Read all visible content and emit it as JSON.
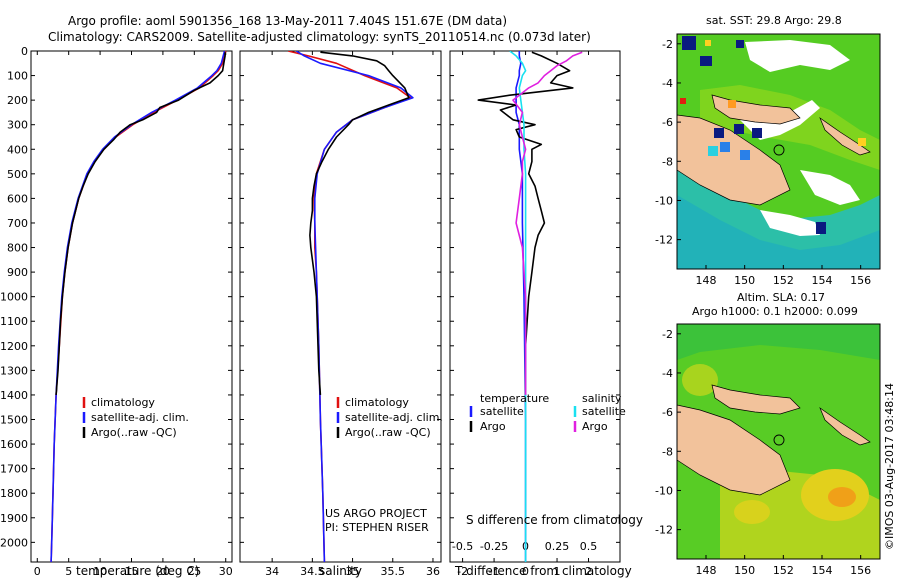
{
  "header": {
    "line1": "Argo profile: aoml 5901356_168 13-May-2011 7.404S 151.67E (DM data)",
    "line2": "Climatology: CARS2009. Satellite-adjusted climatology: synTS_20110514.nc (0.073d later)"
  },
  "colors": {
    "clim": "#e01010",
    "sat": "#1a1aff",
    "argo": "#000000",
    "cyan": "#19e0f0",
    "magenta": "#e020e0",
    "land": "#f2c29b"
  },
  "credits": {
    "project": "US ARGO PROJECT",
    "pi": "PI: STEPHEN RISER"
  },
  "imos": "©IMOS 03-Aug-2017 03:48:14",
  "maps": {
    "sst_title": "sat. SST: 29.8  Argo: 29.8",
    "sla_title1": "Altim. SLA: 0.17",
    "sla_title2": "Argo h1000: 0.1  h2000: 0.099",
    "x_ticks": [
      148,
      150,
      152,
      154,
      156
    ],
    "y_ticks": [
      -2,
      -4,
      -6,
      -8,
      -10,
      -12
    ],
    "xlim": [
      146.5,
      157
    ],
    "ylim": [
      -13.5,
      -1.5
    ],
    "float_position": {
      "lon": 151.67,
      "lat": -7.404
    }
  },
  "chart_data": [
    {
      "type": "line",
      "id": "temperature",
      "xlabel": "temperature (deg C)",
      "ylabel": "",
      "xlim": [
        -1,
        31
      ],
      "ylim": [
        2080,
        0
      ],
      "x_ticks": [
        0,
        5,
        10,
        15,
        20,
        25,
        30
      ],
      "y_ticks": [
        0,
        100,
        200,
        300,
        400,
        500,
        600,
        700,
        800,
        900,
        1000,
        1100,
        1200,
        1300,
        1400,
        1500,
        1600,
        1700,
        1800,
        1900,
        2000
      ],
      "legend": [
        "climatology",
        "satellite-adj. clim.",
        "Argo(..raw -QC)"
      ],
      "series": [
        {
          "name": "climatology",
          "color": "clim",
          "depth": [
            0,
            20,
            50,
            80,
            100,
            150,
            200,
            250,
            300,
            350,
            400,
            450,
            500,
            600,
            700,
            800,
            900,
            1000,
            1200,
            1400,
            1600,
            1800,
            2000,
            2080
          ],
          "values": [
            30,
            29.8,
            29.5,
            28.8,
            28,
            25.8,
            22.3,
            18.5,
            15.2,
            12.5,
            10.6,
            9.1,
            8,
            6.6,
            5.6,
            4.9,
            4.4,
            4.0,
            3.5,
            3.0,
            2.7,
            2.5,
            2.3,
            2.2
          ]
        },
        {
          "name": "satellite-adj. clim.",
          "color": "sat",
          "depth": [
            0,
            20,
            50,
            80,
            100,
            150,
            200,
            250,
            300,
            350,
            400,
            450,
            500,
            600,
            700,
            800,
            900,
            1000,
            1200,
            1400,
            1600,
            1800,
            2000,
            2080
          ],
          "values": [
            29.8,
            29.6,
            29.3,
            28.6,
            27.8,
            25.5,
            22.0,
            18.2,
            15.0,
            12.3,
            10.4,
            9.0,
            7.9,
            6.5,
            5.5,
            4.8,
            4.3,
            3.9,
            3.4,
            3.0,
            2.7,
            2.5,
            2.3,
            2.2
          ]
        },
        {
          "name": "Argo(..raw -QC)",
          "color": "argo",
          "depth": [
            5,
            20,
            50,
            80,
            100,
            130,
            160,
            200,
            230,
            250,
            280,
            300,
            330,
            360,
            400,
            450,
            500,
            550,
            600,
            700,
            800,
            900,
            1000,
            1100,
            1200,
            1300,
            1400
          ],
          "values": [
            29.9,
            29.9,
            29.7,
            29.5,
            28.8,
            27.5,
            25.0,
            22.5,
            19.5,
            19.0,
            16.8,
            14.8,
            13.2,
            12.2,
            10.6,
            9.2,
            8.1,
            7.3,
            6.6,
            5.6,
            4.9,
            4.4,
            4.0,
            3.7,
            3.5,
            3.3,
            3.0
          ]
        }
      ]
    },
    {
      "type": "line",
      "id": "salinity",
      "xlabel": "salinity",
      "ylabel": "",
      "xlim": [
        33.6,
        36.1
      ],
      "ylim": [
        2080,
        0
      ],
      "x_ticks": [
        34,
        34.5,
        35,
        35.5,
        36
      ],
      "legend": [
        "climatology",
        "satellite-adj. clim.",
        "Argo(..raw -QC)"
      ],
      "series": [
        {
          "name": "climatology",
          "color": "clim",
          "depth": [
            0,
            20,
            50,
            100,
            150,
            190,
            230,
            280,
            330,
            400,
            500,
            600,
            700,
            800,
            900,
            1000,
            1200,
            1500,
            1800,
            2080
          ],
          "values": [
            34.2,
            34.45,
            34.8,
            35.15,
            35.55,
            35.72,
            35.4,
            35.0,
            34.8,
            34.65,
            34.55,
            34.52,
            34.53,
            34.53,
            34.55,
            34.56,
            34.58,
            34.6,
            34.63,
            34.65
          ]
        },
        {
          "name": "satellite-adj. clim.",
          "color": "sat",
          "depth": [
            0,
            20,
            50,
            100,
            150,
            190,
            230,
            280,
            330,
            400,
            500,
            600,
            700,
            800,
            900,
            1000,
            1200,
            1500,
            1800,
            2080
          ],
          "values": [
            34.3,
            34.4,
            34.6,
            35.2,
            35.6,
            35.75,
            35.4,
            35.0,
            34.8,
            34.65,
            34.56,
            34.53,
            34.53,
            34.54,
            34.55,
            34.56,
            34.58,
            34.6,
            34.63,
            34.65
          ]
        },
        {
          "name": "Argo(..raw -QC)",
          "color": "argo",
          "depth": [
            5,
            20,
            40,
            60,
            80,
            100,
            150,
            190,
            220,
            250,
            280,
            300,
            350,
            400,
            450,
            500,
            550,
            600,
            650,
            700,
            750,
            800,
            850,
            900,
            1000,
            1100,
            1200,
            1300,
            1400
          ],
          "values": [
            34.6,
            35.0,
            35.3,
            35.4,
            35.45,
            35.5,
            35.65,
            35.7,
            35.45,
            35.2,
            35.0,
            34.95,
            34.8,
            34.7,
            34.62,
            34.55,
            34.52,
            34.5,
            34.5,
            34.48,
            34.47,
            34.48,
            34.5,
            34.52,
            34.55,
            34.56,
            34.57,
            34.58,
            34.6
          ]
        }
      ]
    },
    {
      "type": "line",
      "id": "differences",
      "xlabel": "T difference from climatology",
      "xlabel2": "S difference from climatology",
      "xlim": [
        -2.4,
        3.0
      ],
      "ylim": [
        2080,
        0
      ],
      "x_ticks": [
        -2,
        -1,
        0,
        1,
        2
      ],
      "x_ticks_top": [
        -0.5,
        -0.25,
        0,
        0.25,
        0.5
      ],
      "legend_left_title": "temperature",
      "legend_right_title": "salinity",
      "legend_left": [
        "satellite",
        "Argo"
      ],
      "legend_right": [
        "satellite",
        "Argo"
      ],
      "series": [
        {
          "name": "temperature satellite",
          "color": "sat",
          "depth": [
            0,
            20,
            50,
            80,
            100,
            150,
            200,
            250,
            300,
            400,
            500,
            700,
            1000,
            1500,
            2080
          ],
          "values": [
            -0.2,
            -0.2,
            -0.15,
            -0.2,
            -0.2,
            -0.3,
            -0.3,
            -0.3,
            -0.2,
            -0.2,
            -0.1,
            -0.1,
            -0.05,
            0.0,
            0.0
          ]
        },
        {
          "name": "temperature Argo",
          "color": "argo",
          "depth": [
            5,
            20,
            50,
            80,
            100,
            130,
            150,
            180,
            200,
            220,
            240,
            260,
            280,
            300,
            320,
            350,
            380,
            400,
            450,
            500,
            550,
            600,
            650,
            700,
            750,
            800,
            900,
            1000,
            1200,
            1400
          ],
          "values": [
            0.2,
            0.5,
            1.0,
            1.4,
            1.0,
            0.8,
            1.5,
            -0.5,
            -1.5,
            -0.3,
            -0.8,
            -0.6,
            -0.4,
            0.3,
            -0.3,
            -0.2,
            0.5,
            0.2,
            0.2,
            0.1,
            0.3,
            0.4,
            0.5,
            0.6,
            0.4,
            0.3,
            0.2,
            0.1,
            0.0,
            0.0
          ]
        },
        {
          "name": "salinity satellite",
          "color": "cyan",
          "depth": [
            0,
            20,
            50,
            80,
            100,
            150,
            200,
            250,
            300,
            400,
            500,
            800,
            1200,
            2080
          ],
          "values": [
            -0.5,
            -0.3,
            -0.1,
            0.0,
            -0.1,
            -0.2,
            -0.15,
            -0.1,
            -0.05,
            -0.05,
            0.0,
            0.0,
            0.0,
            0.0
          ]
        },
        {
          "name": "salinity Argo",
          "color": "magenta",
          "depth": [
            5,
            20,
            40,
            60,
            80,
            100,
            130,
            150,
            180,
            200,
            250,
            300,
            350,
            400,
            450,
            500,
            600,
            700,
            800,
            900,
            1000,
            1200,
            1400
          ],
          "values": [
            1.8,
            1.5,
            1.3,
            1.0,
            0.8,
            0.6,
            0.4,
            0.1,
            -0.2,
            -0.4,
            -0.1,
            -0.2,
            -0.1,
            0.0,
            -0.1,
            -0.1,
            -0.2,
            -0.3,
            -0.1,
            -0.05,
            0.0,
            0.0,
            0.0
          ]
        }
      ]
    }
  ]
}
